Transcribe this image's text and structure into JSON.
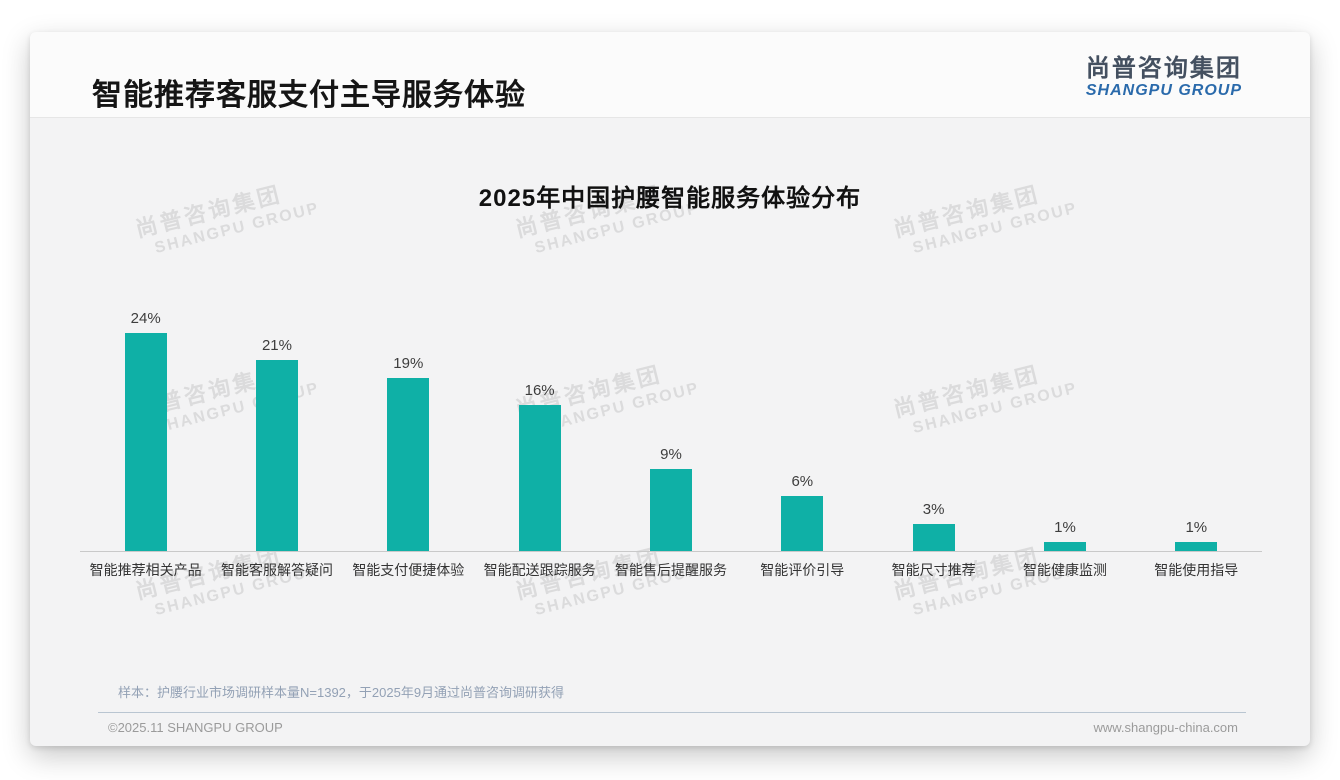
{
  "page": {
    "title": "智能推荐客服支付主导服务体验",
    "logo": {
      "cn": "尚普咨询集团",
      "en": "SHANGPU GROUP"
    },
    "watermark": {
      "cn": "尚普咨询集团",
      "en": "SHANGPU GROUP"
    },
    "note": "样本：护腰行业市场调研样本量N=1392，于2025年9月通过尚普咨询调研获得",
    "footer": {
      "copyright": "©2025.11 SHANGPU GROUP",
      "website": "www.shangpu-china.com"
    }
  },
  "colors": {
    "bar": "#0fb0a6",
    "logo_cn": "#445060",
    "logo_en": "#2a6aab",
    "note_text": "#93a1b5",
    "footer_text": "#9b9b9b",
    "slide_bg": "#f3f3f4"
  },
  "chart_data": {
    "type": "bar",
    "title": "2025年中国护腰智能服务体验分布",
    "categories": [
      "智能推荐相关产品",
      "智能客服解答疑问",
      "智能支付便捷体验",
      "智能配送跟踪服务",
      "智能售后提醒服务",
      "智能评价引导",
      "智能尺寸推荐",
      "智能健康监测",
      "智能使用指导"
    ],
    "values": [
      24,
      21,
      19,
      16,
      9,
      6,
      3,
      1,
      1
    ],
    "unit": "%",
    "bar_color": "#0fb0a6",
    "xlabel": "",
    "ylabel": "",
    "ylim": [
      0,
      26
    ],
    "grid": false,
    "legend": false,
    "value_labels": "above bars"
  }
}
